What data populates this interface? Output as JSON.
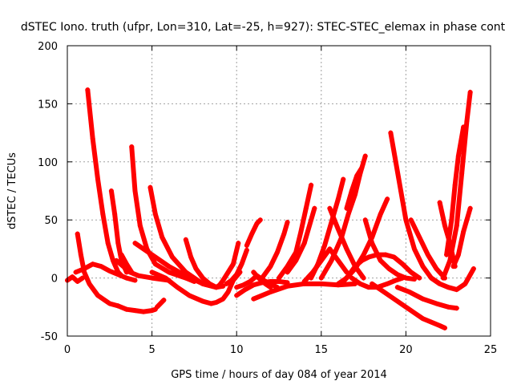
{
  "chart_data": {
    "type": "scatter",
    "title": "dSTEC Iono. truth (ufpr, Lon=310, Lat=-25, h=927): STEC-STEC_elemax in phase cont",
    "xlabel": "GPS time / hours of day 084 of year 2014",
    "ylabel": "dSTEC  / TECUs",
    "xlim": [
      0,
      25
    ],
    "ylim": [
      -50,
      200
    ],
    "x_ticks": [
      0,
      5,
      10,
      15,
      20,
      25
    ],
    "y_ticks": [
      -50,
      0,
      50,
      100,
      150,
      200
    ],
    "grid": true,
    "marker": "+",
    "color": "#ff0000",
    "series": [
      {
        "x": [
          0.0,
          0.3,
          0.6,
          0.9
        ],
        "y": [
          -2,
          1,
          -3,
          0
        ]
      },
      {
        "x": [
          0.6,
          0.8,
          1.0,
          1.3,
          1.8,
          2.5,
          3.0
        ],
        "y": [
          38,
          20,
          5,
          -5,
          -15,
          -22,
          -24
        ]
      },
      {
        "x": [
          3.0,
          3.5,
          4.0,
          4.5,
          5.0,
          5.2
        ],
        "y": [
          -24,
          -27,
          -28,
          -29,
          -28,
          -27
        ]
      },
      {
        "x": [
          5.3,
          5.7
        ],
        "y": [
          -25,
          -19
        ]
      },
      {
        "x": [
          1.2,
          1.5,
          1.8,
          2.1,
          2.4,
          2.7,
          3.0,
          3.2
        ],
        "y": [
          162,
          120,
          85,
          55,
          30,
          15,
          5,
          2
        ]
      },
      {
        "x": [
          2.6,
          2.8,
          3.0,
          3.2,
          3.5
        ],
        "y": [
          75,
          55,
          30,
          15,
          5
        ]
      },
      {
        "x": [
          3.8,
          4.0,
          4.3,
          4.7,
          5.2,
          6.0,
          7.0,
          7.5
        ],
        "y": [
          113,
          75,
          45,
          25,
          12,
          5,
          0,
          -3
        ]
      },
      {
        "x": [
          4.9,
          5.2,
          5.6,
          6.2,
          7.0,
          8.0,
          8.8
        ],
        "y": [
          78,
          55,
          35,
          18,
          5,
          -5,
          -8
        ]
      },
      {
        "x": [
          4.0,
          4.5,
          5.2,
          6.0,
          7.0,
          8.0,
          8.8,
          9.2
        ],
        "y": [
          30,
          25,
          18,
          10,
          2,
          -5,
          -8,
          -7
        ]
      },
      {
        "x": [
          0.5,
          1.0,
          1.5,
          2.0,
          2.5,
          3.0,
          3.5,
          4.0
        ],
        "y": [
          5,
          8,
          12,
          10,
          6,
          3,
          0,
          -2
        ]
      },
      {
        "x": [
          2.9,
          3.3,
          3.7,
          4.2,
          5.0,
          6.0
        ],
        "y": [
          15,
          10,
          5,
          2,
          0,
          -2
        ]
      },
      {
        "x": [
          3.2,
          3.5,
          3.8
        ],
        "y": [
          20,
          12,
          5
        ]
      },
      {
        "x": [
          5.0,
          5.8,
          6.5,
          7.2,
          8.0,
          8.5
        ],
        "y": [
          5,
          0,
          -8,
          -15,
          -20,
          -22
        ]
      },
      {
        "x": [
          8.5,
          8.8,
          9.2,
          9.5,
          9.8,
          10.2
        ],
        "y": [
          -22,
          -21,
          -18,
          -12,
          -2,
          5
        ]
      },
      {
        "x": [
          7.0,
          7.3,
          7.6,
          8.0,
          8.4,
          8.8
        ],
        "y": [
          33,
          18,
          8,
          0,
          -5,
          -8
        ]
      },
      {
        "x": [
          8.8,
          9.0,
          9.2,
          9.5,
          9.8,
          10.1
        ],
        "y": [
          -8,
          -6,
          -2,
          5,
          12,
          30
        ]
      },
      {
        "x": [
          9.4,
          9.7,
          10.0,
          10.3,
          10.6
        ],
        "y": [
          -5,
          -2,
          3,
          12,
          24
        ]
      },
      {
        "x": [
          10.0,
          10.5,
          11.0,
          11.5,
          12.0,
          12.5,
          13.0
        ],
        "y": [
          -15,
          -10,
          -6,
          -4,
          -3,
          -3,
          -4
        ]
      },
      {
        "x": [
          10.0,
          10.4,
          10.8,
          11.2,
          11.6,
          12.0,
          12.4
        ],
        "y": [
          -8,
          -6,
          -3,
          2,
          -2,
          -5,
          -8
        ]
      },
      {
        "x": [
          10.6,
          10.9,
          11.2,
          11.4
        ],
        "y": [
          28,
          38,
          47,
          50
        ]
      },
      {
        "x": [
          11.0,
          11.3,
          11.7,
          12.0
        ],
        "y": [
          5,
          0,
          -5,
          -8
        ]
      },
      {
        "x": [
          11.5,
          12.0,
          12.4,
          12.8,
          13.0
        ],
        "y": [
          0,
          10,
          22,
          38,
          48
        ]
      },
      {
        "x": [
          11.0,
          12.0,
          13.0,
          14.0,
          15.0,
          16.0,
          17.0
        ],
        "y": [
          -18,
          -12,
          -7,
          -5,
          -5,
          -6,
          -5
        ]
      },
      {
        "x": [
          12.5,
          13.0,
          13.5,
          13.8,
          14.1,
          14.4
        ],
        "y": [
          0,
          10,
          22,
          40,
          60,
          80
        ]
      },
      {
        "x": [
          13.0,
          13.5,
          14.0,
          14.3,
          14.6
        ],
        "y": [
          5,
          15,
          30,
          45,
          60
        ]
      },
      {
        "x": [
          14.4,
          14.8,
          15.2,
          15.6,
          16.0,
          16.3
        ],
        "y": [
          0,
          12,
          28,
          48,
          68,
          85
        ]
      },
      {
        "x": [
          15.0,
          15.6,
          16.2,
          16.6,
          17.0,
          17.3,
          17.6
        ],
        "y": [
          0,
          15,
          35,
          55,
          72,
          90,
          105
        ]
      },
      {
        "x": [
          16.5,
          16.8,
          17.1,
          17.4
        ],
        "y": [
          60,
          75,
          88,
          95
        ]
      },
      {
        "x": [
          16.0,
          16.5,
          17.0,
          17.5,
          18.0,
          18.5,
          18.9
        ],
        "y": [
          -5,
          0,
          8,
          20,
          35,
          55,
          68
        ]
      },
      {
        "x": [
          17.6,
          18.0,
          18.5,
          19.0,
          19.5,
          20.0,
          20.5
        ],
        "y": [
          50,
          30,
          15,
          8,
          3,
          0,
          -1
        ]
      },
      {
        "x": [
          16.8,
          17.3,
          17.8,
          18.3,
          18.9,
          19.4,
          19.8
        ],
        "y": [
          0,
          -5,
          -8,
          -8,
          -5,
          -2,
          0
        ]
      },
      {
        "x": [
          14.0,
          14.5,
          15.0,
          15.5,
          16.0,
          16.5
        ],
        "y": [
          -3,
          5,
          15,
          25,
          15,
          5
        ]
      },
      {
        "x": [
          15.5,
          16.0,
          16.5,
          17.0,
          17.5
        ],
        "y": [
          60,
          42,
          25,
          10,
          0
        ]
      },
      {
        "x": [
          16.2,
          16.6,
          17.0,
          17.4,
          17.8,
          18.3,
          18.8
        ],
        "y": [
          -5,
          2,
          10,
          15,
          18,
          20,
          20
        ]
      },
      {
        "x": [
          18.8,
          19.3,
          19.8,
          20.3,
          20.8
        ],
        "y": [
          20,
          18,
          12,
          5,
          0
        ]
      },
      {
        "x": [
          19.1,
          19.4,
          19.7,
          20.0,
          20.5,
          21.0,
          21.5,
          22.0
        ],
        "y": [
          125,
          100,
          75,
          50,
          25,
          10,
          0,
          -5
        ]
      },
      {
        "x": [
          18.0,
          18.5,
          19.0,
          19.5,
          20.0,
          20.5,
          21.0,
          21.5,
          22.0,
          22.3
        ],
        "y": [
          -5,
          -10,
          -15,
          -20,
          -25,
          -30,
          -35,
          -38,
          -41,
          -43
        ]
      },
      {
        "x": [
          19.5,
          20.2,
          21.0,
          21.8,
          22.5,
          23.0
        ],
        "y": [
          -8,
          -12,
          -18,
          -22,
          -25,
          -26
        ]
      },
      {
        "x": [
          20.3,
          20.8,
          21.3,
          21.8,
          22.3
        ],
        "y": [
          50,
          35,
          20,
          8,
          0
        ]
      },
      {
        "x": [
          21.5,
          22.0,
          22.5,
          23.0,
          23.5,
          24.0
        ],
        "y": [
          0,
          -5,
          -8,
          -10,
          -5,
          8
        ]
      },
      {
        "x": [
          22.2,
          22.6,
          23.0,
          23.3,
          23.6,
          23.8
        ],
        "y": [
          0,
          15,
          45,
          90,
          135,
          160
        ]
      },
      {
        "x": [
          22.4,
          22.7,
          22.9,
          23.1,
          23.4
        ],
        "y": [
          20,
          50,
          80,
          105,
          130
        ]
      },
      {
        "x": [
          22.0,
          22.3,
          22.6,
          22.9
        ],
        "y": [
          65,
          45,
          30,
          10
        ]
      },
      {
        "x": [
          22.8,
          23.1,
          23.4,
          23.8
        ],
        "y": [
          10,
          20,
          40,
          60
        ]
      }
    ]
  }
}
